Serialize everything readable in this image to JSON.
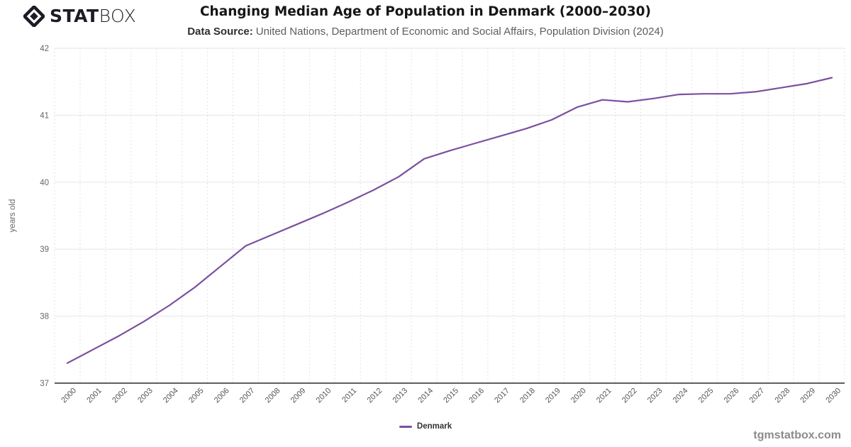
{
  "logo": {
    "stat": "STAT",
    "box": "BOX",
    "icon": "diamond-icon",
    "color": "#1c1c26"
  },
  "header": {
    "title": "Changing Median Age of Population in Denmark (2000–2030)",
    "source_label": "Data Source:",
    "source_value": "United Nations, Department of Economic and Social Affairs, Population Division (2024)"
  },
  "watermark": "tgmstatbox.com",
  "chart_data": {
    "type": "line",
    "title": "Changing Median Age of Population in Denmark (2000–2030)",
    "xlabel": "",
    "ylabel": "years old",
    "ylim": [
      37,
      42
    ],
    "yticks": [
      37,
      38,
      39,
      40,
      41,
      42
    ],
    "grid": {
      "horizontal": "solid",
      "vertical": "dotted"
    },
    "legend_position": "bottom-center",
    "categories": [
      "2000",
      "2001",
      "2002",
      "2003",
      "2004",
      "2005",
      "2006",
      "2007",
      "2008",
      "2009",
      "2010",
      "2011",
      "2012",
      "2013",
      "2014",
      "2015",
      "2016",
      "2017",
      "2018",
      "2019",
      "2020",
      "2021",
      "2022",
      "2023",
      "2024",
      "2025",
      "2026",
      "2027",
      "2028",
      "2029",
      "2030"
    ],
    "series": [
      {
        "name": "Denmark",
        "color": "#7a519e",
        "values": [
          37.3,
          37.5,
          37.7,
          37.92,
          38.16,
          38.43,
          38.74,
          39.05,
          39.21,
          39.37,
          39.53,
          39.7,
          39.88,
          40.08,
          40.35,
          40.47,
          40.58,
          40.69,
          40.8,
          40.93,
          41.12,
          41.23,
          41.2,
          41.25,
          41.31,
          41.32,
          41.32,
          41.35,
          41.41,
          41.47,
          41.56
        ]
      }
    ]
  }
}
